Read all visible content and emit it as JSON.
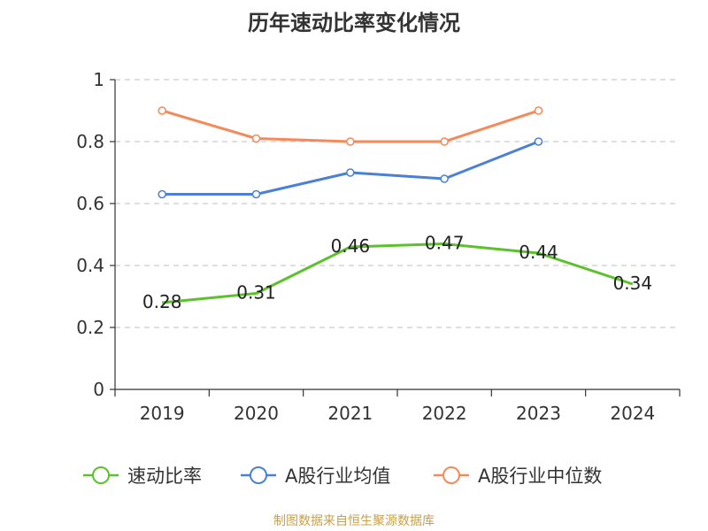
{
  "title": "历年速动比率变化情况",
  "source": "制图数据来自恒生聚源数据库",
  "chart_data": {
    "type": "line",
    "categories": [
      "2019",
      "2020",
      "2021",
      "2022",
      "2023",
      "2024"
    ],
    "ylim": [
      0,
      1
    ],
    "yticks": [
      0,
      0.2,
      0.4,
      0.6,
      0.8,
      1
    ],
    "ytick_labels": [
      "0",
      "0.2",
      "0.4",
      "0.6",
      "0.8",
      "1"
    ],
    "grid": true,
    "legend_position": "bottom",
    "series": [
      {
        "name": "速动比率",
        "color": "#5cc12c",
        "values": [
          0.28,
          0.31,
          0.46,
          0.47,
          0.44,
          0.34
        ],
        "labels": [
          "0.28",
          "0.31",
          "0.46",
          "0.47",
          "0.44",
          "0.34"
        ],
        "show_labels": true
      },
      {
        "name": "A股行业均值",
        "color": "#4a80d8",
        "values": [
          0.63,
          0.63,
          0.7,
          0.68,
          0.8,
          null
        ],
        "show_labels": false
      },
      {
        "name": "A股行业中位数",
        "color": "#f5895a",
        "values": [
          0.9,
          0.81,
          0.8,
          0.8,
          0.9,
          null
        ],
        "show_labels": false
      }
    ]
  }
}
